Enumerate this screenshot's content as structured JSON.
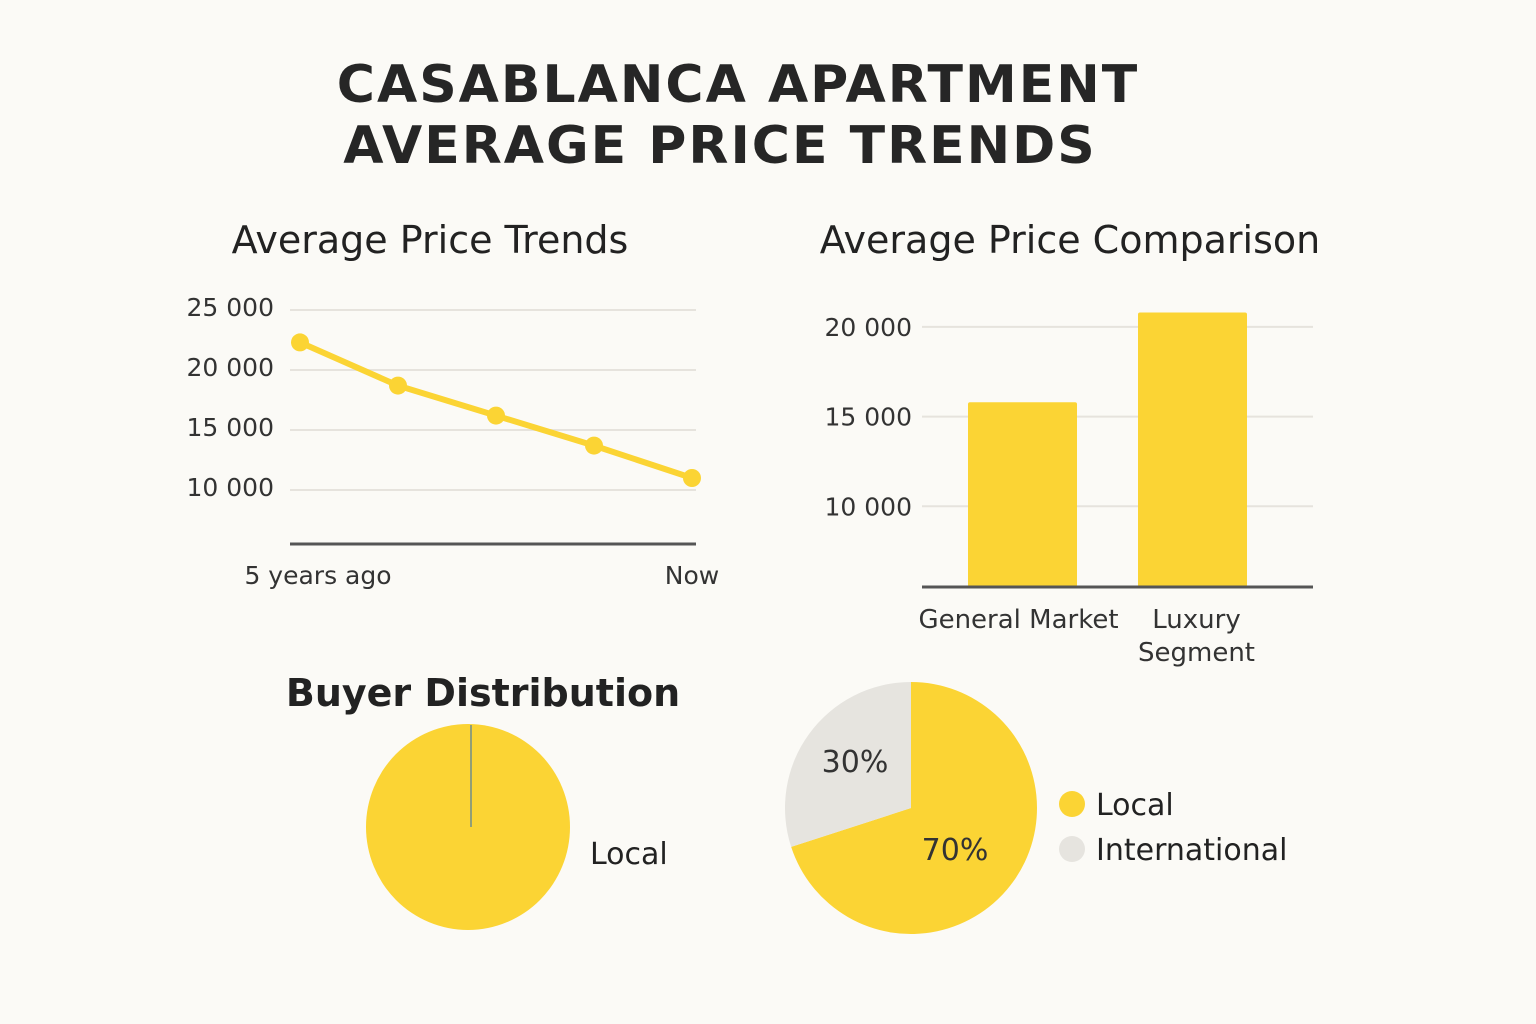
{
  "title": {
    "line1": "CASABLANCA APARTMENT",
    "line2": "AVERAGE PRICE TRENDS"
  },
  "colors": {
    "accent": "#fbd434",
    "gray": "#e6e4df",
    "axis": "#555555",
    "grid": "#e6e3dd"
  },
  "chart_data": [
    {
      "type": "line",
      "title": "Average Price Trends",
      "yticks": [
        "25 000",
        "20 000",
        "15 000",
        "10 000"
      ],
      "ytick_values": [
        25000,
        20000,
        15000,
        10000
      ],
      "x_labels": [
        "5 years ago",
        "Now"
      ],
      "x": [
        0,
        1,
        2,
        3,
        4
      ],
      "values": [
        22300,
        18700,
        16200,
        13700,
        11000
      ],
      "ylim": [
        5500,
        25000
      ]
    },
    {
      "type": "bar",
      "title": "Average Price Comparison",
      "categories": [
        "General Market",
        "Luxury Segment"
      ],
      "category_lines": [
        [
          "General Market"
        ],
        [
          "Luxury",
          "Segment"
        ]
      ],
      "values": [
        15800,
        20800
      ],
      "yticks": [
        "20 000",
        "15 000",
        "10 000"
      ],
      "ytick_values": [
        20000,
        15000,
        10000
      ],
      "ylim": [
        5500,
        21500
      ]
    },
    {
      "type": "pie",
      "title": "Buyer Distribution",
      "slices": [
        {
          "label": "Local",
          "value": 100
        }
      ],
      "label": "Local"
    },
    {
      "type": "pie",
      "title": "",
      "slices": [
        {
          "label": "Local",
          "value": 70,
          "text": "70%"
        },
        {
          "label": "International",
          "value": 30,
          "text": "30%"
        }
      ],
      "legend": [
        "Local",
        "International"
      ]
    }
  ]
}
